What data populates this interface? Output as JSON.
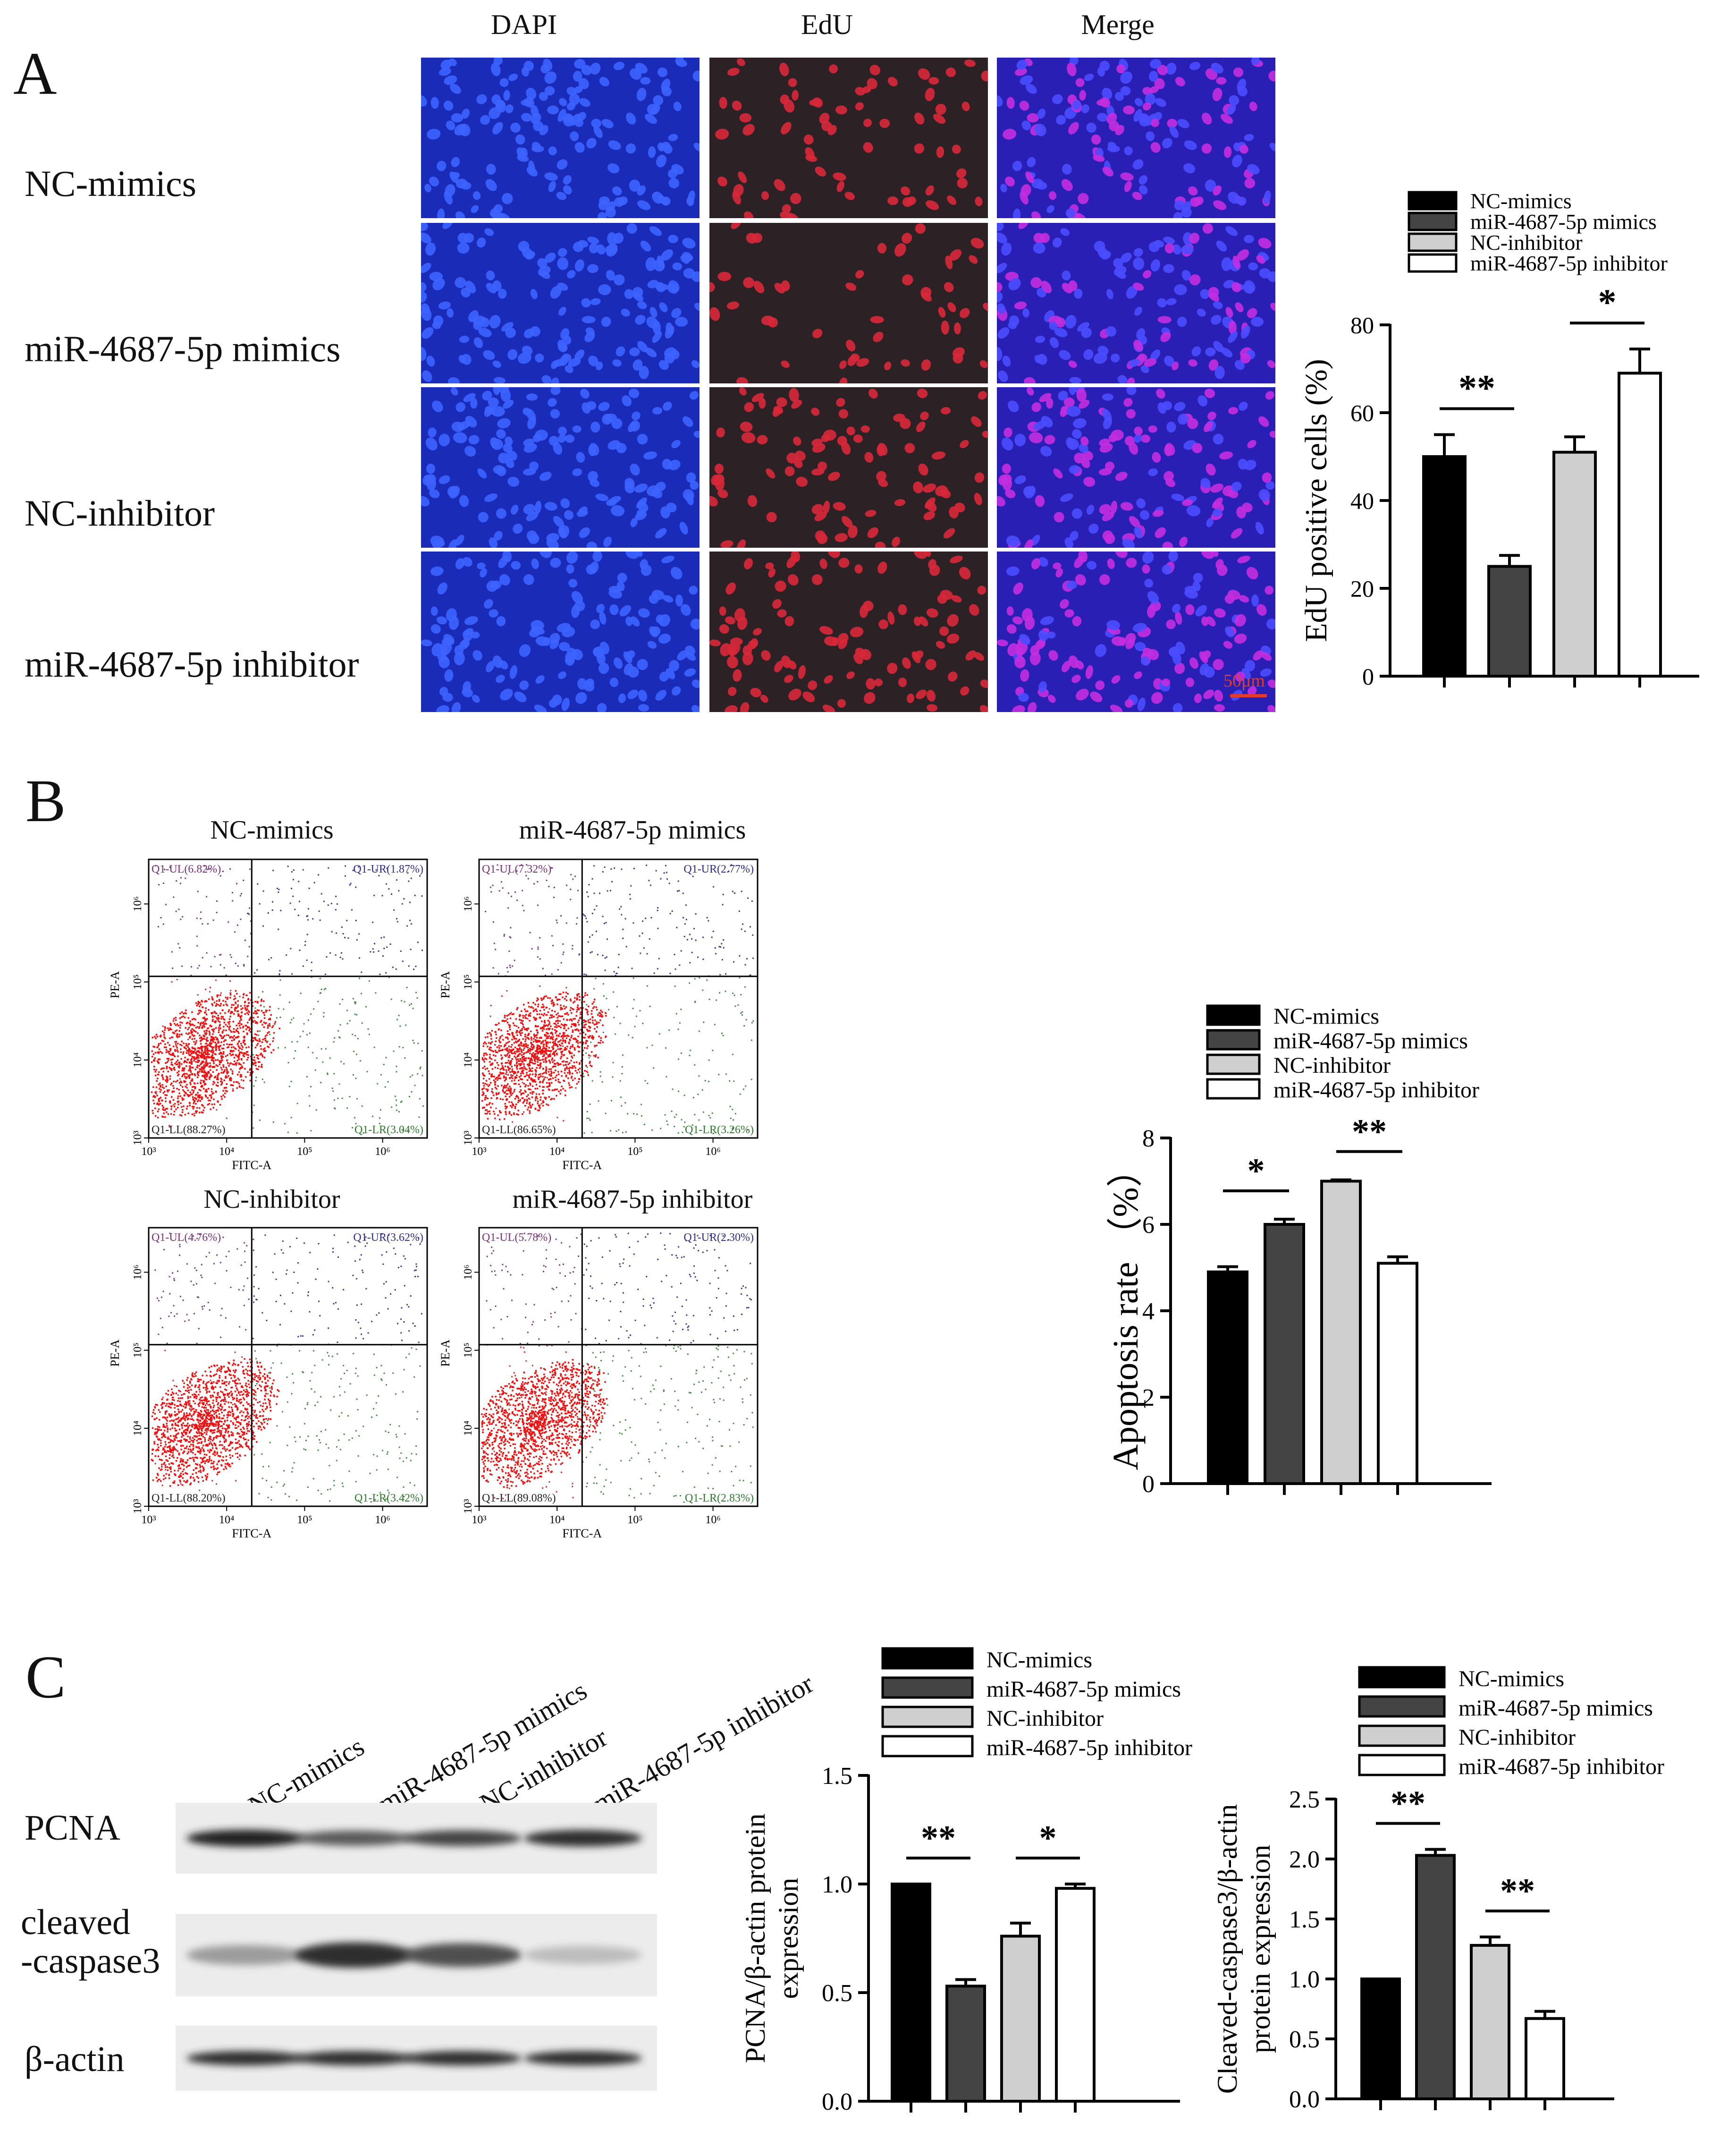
{
  "panels": {
    "A": {
      "letter": "A",
      "columns": [
        "DAPI",
        "EdU",
        "Merge"
      ],
      "rows": [
        "NC-mimics",
        "miR-4687-5p mimics",
        "NC-inhibitor",
        "miR-4687-5p inhibitor"
      ],
      "scale_bar_label": "50μm"
    },
    "B": {
      "letter": "B",
      "plots": [
        {
          "title": "NC-mimics",
          "UL": "Q1-UL(6.82%)",
          "UR": "Q1-UR(1.87%)",
          "LL": "Q1-LL(88.27%)",
          "LR": "Q1-LR(3.04%)"
        },
        {
          "title": "miR-4687-5p mimics",
          "UL": "Q1-UL(7.32%)",
          "UR": "Q1-UR(2.77%)",
          "LL": "Q1-LL(86.65%)",
          "LR": "Q1-LR(3.26%)"
        },
        {
          "title": "NC-inhibitor",
          "UL": "Q1-UL(4.76%)",
          "UR": "Q1-UR(3.62%)",
          "LL": "Q1-LL(88.20%)",
          "LR": "Q1-LR(3.42%)"
        },
        {
          "title": "miR-4687-5p inhibitor",
          "UL": "Q1-UL(5.78%)",
          "UR": "Q1-UR(2.30%)",
          "LL": "Q1-LL(89.08%)",
          "LR": "Q1-LR(2.83%)"
        }
      ],
      "x_axis": "FITC-A",
      "y_axis": "PE-A",
      "ticks": [
        "10³",
        "10⁴",
        "10⁵",
        "10⁶"
      ]
    },
    "C": {
      "letter": "C",
      "lanes": [
        "NC-mimics",
        "miR-4687-5p mimics",
        "NC-inhibitor",
        "miR-4687-5p  inhibitor"
      ],
      "bands": [
        "PCNA",
        "cleaved\n-caspase3",
        "β-actin"
      ]
    }
  },
  "colors": {
    "black": "#000000",
    "dark_gray": "#444444",
    "light_gray": "#cfcfcf",
    "white": "#ffffff"
  },
  "chart_data": [
    {
      "id": "edu",
      "type": "bar",
      "categories": [
        "NC-mimics",
        "miR-4687-5p mimics",
        "NC-inhibitor",
        "miR-4687-5p inhibitor"
      ],
      "values": [
        50,
        25,
        51,
        69
      ],
      "errors": [
        5,
        2.5,
        3.5,
        5.5
      ],
      "ylabel": "EdU positive cells (%)",
      "ylim": [
        0,
        80
      ],
      "yticks": [
        0,
        20,
        40,
        60,
        80
      ],
      "legend": [
        "NC-mimics",
        "miR-4687-5p mimics",
        "NC-inhibitor",
        "miR-4687-5p inhibitor"
      ],
      "significance": [
        {
          "pair": [
            0,
            1
          ],
          "label": "**"
        },
        {
          "pair": [
            2,
            3
          ],
          "label": "*"
        }
      ]
    },
    {
      "id": "apoptosis",
      "type": "bar",
      "categories": [
        "NC-mimics",
        "miR-4687-5p mimics",
        "NC-inhibitor",
        "miR-4687-5p inhibitor"
      ],
      "values": [
        4.9,
        6.0,
        7.0,
        5.1
      ],
      "errors": [
        0.12,
        0.12,
        0.03,
        0.15
      ],
      "ylabel": "Apoptosis rate （%）",
      "ylim": [
        0,
        8
      ],
      "yticks": [
        0,
        2,
        4,
        6,
        8
      ],
      "legend": [
        "NC-mimics",
        "miR-4687-5p mimics",
        "NC-inhibitor",
        "miR-4687-5p inhibitor"
      ],
      "significance": [
        {
          "pair": [
            0,
            1
          ],
          "label": "*"
        },
        {
          "pair": [
            2,
            3
          ],
          "label": "**"
        }
      ]
    },
    {
      "id": "pcna",
      "type": "bar",
      "categories": [
        "NC-mimics",
        "miR-4687-5p mimics",
        "NC-inhibitor",
        "miR-4687-5p inhibitor"
      ],
      "values": [
        1.0,
        0.53,
        0.76,
        0.98
      ],
      "errors": [
        0,
        0.03,
        0.06,
        0.02
      ],
      "ylabel": [
        "PCNA/β-actin protein",
        "expression"
      ],
      "ylim": [
        0,
        1.5
      ],
      "yticks": [
        0.0,
        0.5,
        1.0,
        1.5
      ],
      "ytick_labels": [
        "0.0",
        "0.5",
        "1.0",
        "1.5"
      ],
      "legend": [
        "NC-mimics",
        "miR-4687-5p mimics",
        "NC-inhibitor",
        "miR-4687-5p inhibitor"
      ],
      "significance": [
        {
          "pair": [
            0,
            1
          ],
          "label": "**"
        },
        {
          "pair": [
            2,
            3
          ],
          "label": "*"
        }
      ]
    },
    {
      "id": "caspase",
      "type": "bar",
      "categories": [
        "NC-mimics",
        "miR-4687-5p mimics",
        "NC-inhibitor",
        "miR-4687-5p inhibitor"
      ],
      "values": [
        1.0,
        2.03,
        1.28,
        0.67
      ],
      "errors": [
        0,
        0.05,
        0.07,
        0.06
      ],
      "ylabel": [
        "Cleaved-caspase3/β-actin",
        "protein expression"
      ],
      "ylim": [
        0,
        2.5
      ],
      "yticks": [
        0.0,
        0.5,
        1.0,
        1.5,
        2.0,
        2.5
      ],
      "ytick_labels": [
        "0.0",
        "0.5",
        "1.0",
        "1.5",
        "2.0",
        "2.5"
      ],
      "legend": [
        "NC-mimics",
        "miR-4687-5p mimics",
        "NC-inhibitor",
        "miR-4687-5p inhibitor"
      ],
      "significance": [
        {
          "pair": [
            0,
            1
          ],
          "label": "**"
        },
        {
          "pair": [
            2,
            3
          ],
          "label": "**"
        }
      ]
    }
  ]
}
